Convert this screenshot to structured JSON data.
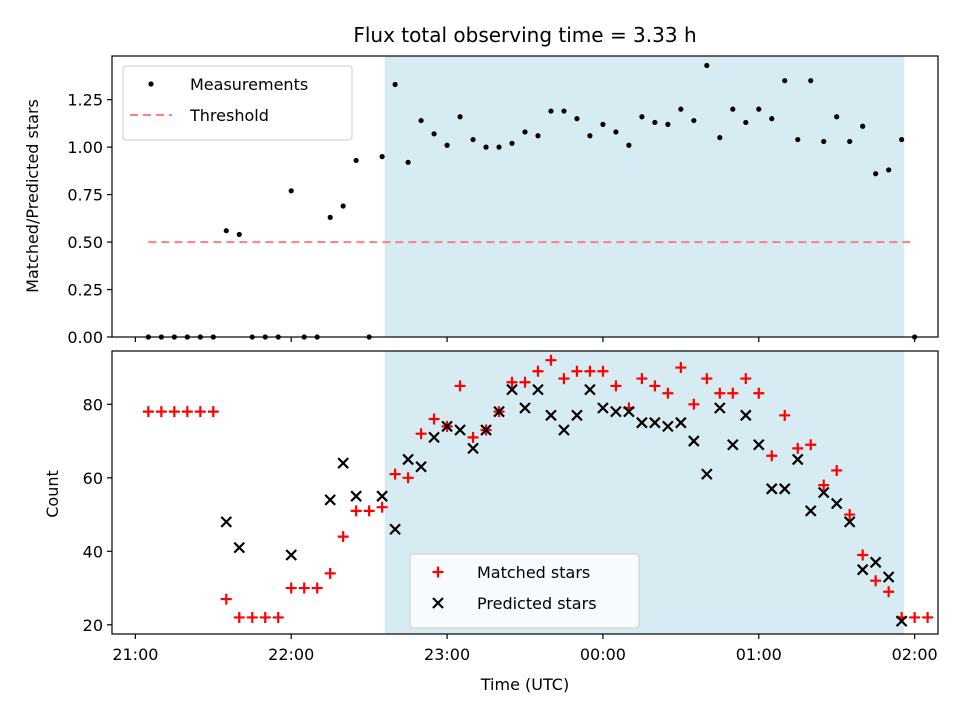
{
  "chart_data": [
    {
      "type": "scatter",
      "title": "Flux total observing time = 3.33 h",
      "xlabel": "",
      "ylabel": "Matched/Predicted stars",
      "xlim": [
        "20:51",
        "02:09"
      ],
      "ylim": [
        0,
        1.48
      ],
      "xticks": [
        "21:00",
        "22:00",
        "23:00",
        "00:00",
        "01:00",
        "02:00"
      ],
      "xtick_labels_shown": false,
      "yticks": [
        0.0,
        0.25,
        0.5,
        0.75,
        1.0,
        1.25
      ],
      "ytick_labels": [
        "0.00",
        "0.25",
        "0.50",
        "0.75",
        "1.00",
        "1.25"
      ],
      "shaded_span": {
        "start": "22:36",
        "end": "01:56",
        "color": "#add8e6"
      },
      "legend_position": "upper left",
      "series": [
        {
          "name": "Measurements",
          "marker": "dot",
          "color": "#000000",
          "x": [
            "21:05",
            "21:10",
            "21:15",
            "21:20",
            "21:25",
            "21:30",
            "21:35",
            "21:40",
            "21:45",
            "21:50",
            "21:55",
            "22:00",
            "22:05",
            "22:10",
            "22:15",
            "22:20",
            "22:25",
            "22:30",
            "22:35",
            "22:40",
            "22:45",
            "22:50",
            "22:55",
            "23:00",
            "23:05",
            "23:10",
            "23:15",
            "23:20",
            "23:25",
            "23:30",
            "23:35",
            "23:40",
            "23:45",
            "23:50",
            "23:55",
            "00:00",
            "00:05",
            "00:10",
            "00:15",
            "00:20",
            "00:25",
            "00:30",
            "00:35",
            "00:40",
            "00:45",
            "00:50",
            "00:55",
            "01:00",
            "01:05",
            "01:10",
            "01:15",
            "01:20",
            "01:25",
            "01:30",
            "01:35",
            "01:40",
            "01:45",
            "01:50",
            "01:55",
            "02:00"
          ],
          "y": [
            0.0,
            0.0,
            0.0,
            0.0,
            0.0,
            0.0,
            0.56,
            0.54,
            0.0,
            0.0,
            0.0,
            0.77,
            0.0,
            0.0,
            0.63,
            0.69,
            0.93,
            0.0,
            0.95,
            1.33,
            0.92,
            1.14,
            1.07,
            1.01,
            1.16,
            1.04,
            1.0,
            1.0,
            1.02,
            1.08,
            1.06,
            1.19,
            1.19,
            1.15,
            1.06,
            1.12,
            1.08,
            1.01,
            1.16,
            1.13,
            1.12,
            1.2,
            1.14,
            1.43,
            1.05,
            1.2,
            1.13,
            1.2,
            1.15,
            1.35,
            1.04,
            1.35,
            1.03,
            1.16,
            1.03,
            1.11,
            0.86,
            0.88,
            1.04,
            0.0
          ]
        },
        {
          "name": "Threshold",
          "marker": "dashed-line",
          "color": "#ff7f7f",
          "x": [
            "21:05",
            "02:00"
          ],
          "y": [
            0.5,
            0.5
          ]
        }
      ]
    },
    {
      "type": "scatter",
      "title": "",
      "xlabel": "Time (UTC)",
      "ylabel": "Count",
      "xlim": [
        "20:51",
        "02:09"
      ],
      "ylim": [
        17.5,
        94.5
      ],
      "xticks": [
        "21:00",
        "22:00",
        "23:00",
        "00:00",
        "01:00",
        "02:00"
      ],
      "xtick_labels": [
        "21:00",
        "22:00",
        "23:00",
        "00:00",
        "01:00",
        "02:00"
      ],
      "yticks": [
        20,
        40,
        60,
        80
      ],
      "ytick_labels": [
        "20",
        "40",
        "60",
        "80"
      ],
      "shaded_span": {
        "start": "22:36",
        "end": "01:56",
        "color": "#add8e6"
      },
      "legend_position": "lower center",
      "series": [
        {
          "name": "Matched stars",
          "marker": "plus",
          "color": "#ff0000",
          "x": [
            "21:05",
            "21:10",
            "21:15",
            "21:20",
            "21:25",
            "21:30",
            "21:35",
            "21:40",
            "21:45",
            "21:50",
            "21:55",
            "22:00",
            "22:05",
            "22:10",
            "22:15",
            "22:20",
            "22:25",
            "22:30",
            "22:35",
            "22:40",
            "22:45",
            "22:50",
            "22:55",
            "23:00",
            "23:05",
            "23:10",
            "23:15",
            "23:20",
            "23:25",
            "23:30",
            "23:35",
            "23:40",
            "23:45",
            "23:50",
            "23:55",
            "00:00",
            "00:05",
            "00:10",
            "00:15",
            "00:20",
            "00:25",
            "00:30",
            "00:35",
            "00:40",
            "00:45",
            "00:50",
            "00:55",
            "01:00",
            "01:05",
            "01:10",
            "01:15",
            "01:20",
            "01:25",
            "01:30",
            "01:35",
            "01:40",
            "01:45",
            "01:50",
            "01:55",
            "02:00",
            "02:05"
          ],
          "y": [
            78,
            78,
            78,
            78,
            78,
            78,
            27,
            22,
            22,
            22,
            22,
            30,
            30,
            30,
            34,
            44,
            51,
            51,
            52,
            61,
            60,
            72,
            76,
            74,
            85,
            71,
            73,
            78,
            86,
            86,
            89,
            92,
            87,
            89,
            89,
            89,
            85,
            79,
            87,
            85,
            83,
            90,
            80,
            87,
            83,
            83,
            87,
            83,
            66,
            77,
            68,
            69,
            58,
            62,
            50,
            39,
            32,
            29,
            22,
            22,
            22
          ]
        },
        {
          "name": "Predicted stars",
          "marker": "x",
          "color": "#000000",
          "x": [
            "21:35",
            "21:40",
            "22:00",
            "22:15",
            "22:20",
            "22:25",
            "22:35",
            "22:40",
            "22:45",
            "22:50",
            "22:55",
            "23:00",
            "23:05",
            "23:10",
            "23:15",
            "23:20",
            "23:25",
            "23:30",
            "23:35",
            "23:40",
            "23:45",
            "23:50",
            "23:55",
            "00:00",
            "00:05",
            "00:10",
            "00:15",
            "00:20",
            "00:25",
            "00:30",
            "00:35",
            "00:40",
            "00:45",
            "00:50",
            "00:55",
            "01:00",
            "01:05",
            "01:10",
            "01:15",
            "01:20",
            "01:25",
            "01:30",
            "01:35",
            "01:40",
            "01:45",
            "01:50",
            "01:55"
          ],
          "y": [
            48,
            41,
            39,
            54,
            64,
            55,
            55,
            46,
            65,
            63,
            71,
            74,
            73,
            68,
            73,
            78,
            84,
            79,
            84,
            77,
            73,
            77,
            84,
            79,
            78,
            78,
            75,
            75,
            74,
            75,
            70,
            61,
            79,
            69,
            77,
            69,
            57,
            57,
            65,
            51,
            56,
            53,
            48,
            35,
            37,
            33,
            21
          ]
        }
      ]
    }
  ]
}
